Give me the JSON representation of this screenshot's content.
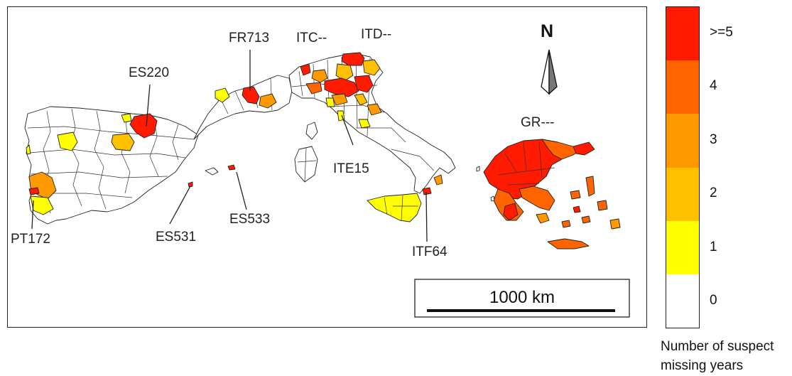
{
  "map": {
    "labels": {
      "es220": "ES220",
      "fr713": "FR713",
      "itc": "ITC--",
      "itd": "ITD--",
      "gr": "GR---",
      "ite15": "ITE15",
      "es533": "ES533",
      "es531": "ES531",
      "pt172": "PT172",
      "itf64": "ITF64"
    },
    "north_arrow_label": "N",
    "scale_bar_label": "1000 km"
  },
  "legend": {
    "title_line1": "Number of suspect",
    "title_line2": "missing years",
    "classes": [
      {
        "label": ">=5",
        "color": "#ff1a00"
      },
      {
        "label": "4",
        "color": "#ff6400"
      },
      {
        "label": "3",
        "color": "#ff9900"
      },
      {
        "label": "2",
        "color": "#ffc000"
      },
      {
        "label": "1",
        "color": "#ffff00"
      },
      {
        "label": "0",
        "color": "#ffffff"
      }
    ]
  },
  "colors": {
    "c5": "#ff1a00",
    "c4": "#ff6400",
    "c3": "#ff9900",
    "c2": "#ffc000",
    "c1": "#ffff00",
    "c0": "#ffffff"
  },
  "icons": {
    "north_arrow": "north-arrow-icon"
  }
}
